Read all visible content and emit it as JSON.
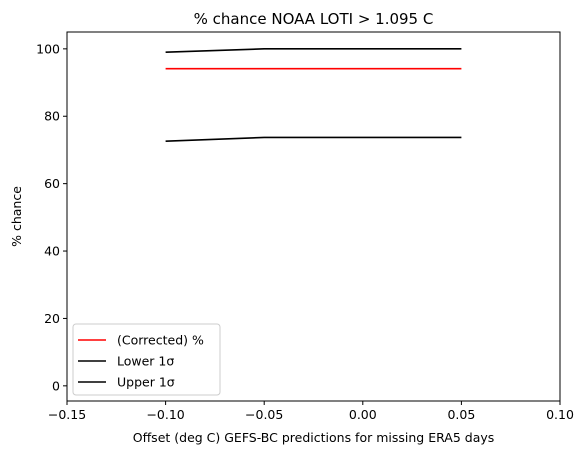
{
  "chart_data": {
    "type": "line",
    "title": "% chance NOAA LOTI > 1.095 C",
    "xlabel": "Offset (deg C) GEFS-BC predictions for missing ERA5 days",
    "ylabel": "% chance",
    "xlim": [
      -0.15,
      0.1
    ],
    "ylim": [
      -4.5,
      105
    ],
    "x_ticks": [
      -0.15,
      -0.1,
      -0.05,
      0.0,
      0.05,
      0.1
    ],
    "x_tick_labels": [
      "−0.15",
      "−0.10",
      "−0.05",
      "0.00",
      "0.05",
      "0.10"
    ],
    "y_ticks": [
      0,
      20,
      40,
      60,
      80,
      100
    ],
    "y_tick_labels": [
      "0",
      "20",
      "40",
      "60",
      "80",
      "100"
    ],
    "grid": false,
    "legend_position": "lower-left",
    "x": [
      -0.1,
      -0.05,
      0.0,
      0.05
    ],
    "series": [
      {
        "name": "(Corrected) %",
        "color": "#ff0000",
        "values": [
          94.1,
          94.1,
          94.1,
          94.1
        ]
      },
      {
        "name": "Lower 1σ",
        "color": "#000000",
        "values": [
          99.0,
          100.0,
          100.0,
          100.0
        ]
      },
      {
        "name": "Upper 1σ",
        "color": "#000000",
        "values": [
          72.6,
          73.7,
          73.7,
          73.7
        ]
      }
    ]
  }
}
